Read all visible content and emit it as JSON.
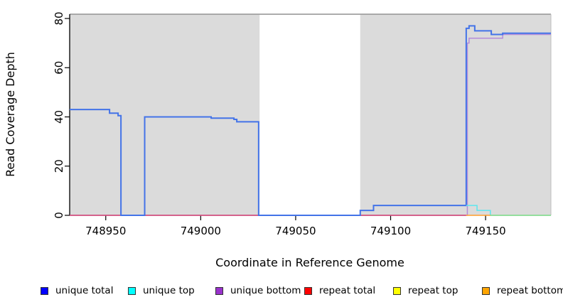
{
  "chart_data": {
    "type": "line",
    "subtype": "step-coverage",
    "title": "",
    "xlabel": "Coordinate in Reference Genome",
    "ylabel": "Read Coverage Depth",
    "xlim": [
      748931,
      749184.4
    ],
    "ylim": [
      0,
      82
    ],
    "x_ticks": [
      748950,
      749000,
      749050,
      749100,
      749150
    ],
    "x_tick_labels": [
      "748950",
      "749000",
      "749050",
      "749100",
      "749150"
    ],
    "y_ticks": [
      0,
      20,
      40,
      60,
      80
    ],
    "y_tick_labels": [
      "0",
      "20",
      "40",
      "60",
      "80"
    ],
    "grid": false,
    "shaded_regions": [
      {
        "x0": 748931,
        "x1": 749031,
        "color": "#DBDBDB"
      },
      {
        "x0": 749084,
        "x1": 749184.4,
        "color": "#DBDBDB"
      }
    ],
    "series": [
      {
        "name": "unique bottom",
        "line_color": "#B48CD9",
        "line_width": 1.5,
        "steps": [
          [
            748931,
            749140.4,
            0
          ],
          [
            749140.4,
            749141.3,
            70
          ],
          [
            749141.3,
            749159,
            72
          ],
          [
            749159,
            749184.4,
            73.5
          ]
        ]
      },
      {
        "name": "repeat total",
        "line_color": "#D6446F",
        "line_width": 1.5,
        "steps": [
          [
            748931,
            749139.8,
            0
          ]
        ]
      },
      {
        "name": "unique total",
        "line_color": "#4373E8",
        "line_width": 2,
        "steps": [
          [
            748931,
            748952,
            43
          ],
          [
            748952,
            748956.5,
            41.5
          ],
          [
            748956.5,
            748958,
            40.5
          ],
          [
            748958,
            748970.5,
            0
          ],
          [
            748970.5,
            749005.5,
            40
          ],
          [
            749005.5,
            749017.5,
            39.5
          ],
          [
            749017.5,
            749019,
            39
          ],
          [
            749019,
            749030.5,
            38
          ],
          [
            749030.5,
            749084,
            0
          ],
          [
            749084,
            749091,
            2
          ],
          [
            749091,
            749139.8,
            4
          ],
          [
            749139.8,
            749141.3,
            76
          ],
          [
            749141.3,
            749144.3,
            77
          ],
          [
            749144.3,
            749153,
            75
          ],
          [
            749153,
            749159,
            73.5
          ],
          [
            749159,
            749184.4,
            74
          ]
        ]
      },
      {
        "name": "unique top",
        "line_color": "#5CE6EE",
        "line_width": 1.5,
        "steps": [
          [
            749139.8,
            749145.5,
            4
          ],
          [
            749145.5,
            749152.5,
            2
          ],
          [
            749152.5,
            749184.4,
            0
          ]
        ]
      },
      {
        "name": "repeat top",
        "line_color": "#8FD983",
        "line_width": 1.5,
        "steps": [
          [
            749152.5,
            749184.4,
            0
          ]
        ]
      },
      {
        "name": "repeat bottom",
        "line_color": "#FF9E2C",
        "line_width": 1.5,
        "steps": [
          [
            749139.8,
            749152.5,
            0
          ]
        ]
      }
    ]
  },
  "legend": {
    "items": [
      {
        "label": "unique total",
        "color": "#0000FF"
      },
      {
        "label": "unique top",
        "color": "#00FFFF"
      },
      {
        "label": "unique bottom",
        "color": "#9932CC"
      },
      {
        "label": "repeat total",
        "color": "#FF0000"
      },
      {
        "label": "repeat top",
        "color": "#FFFF00"
      },
      {
        "label": "repeat bottom",
        "color": "#FFA500"
      }
    ]
  }
}
